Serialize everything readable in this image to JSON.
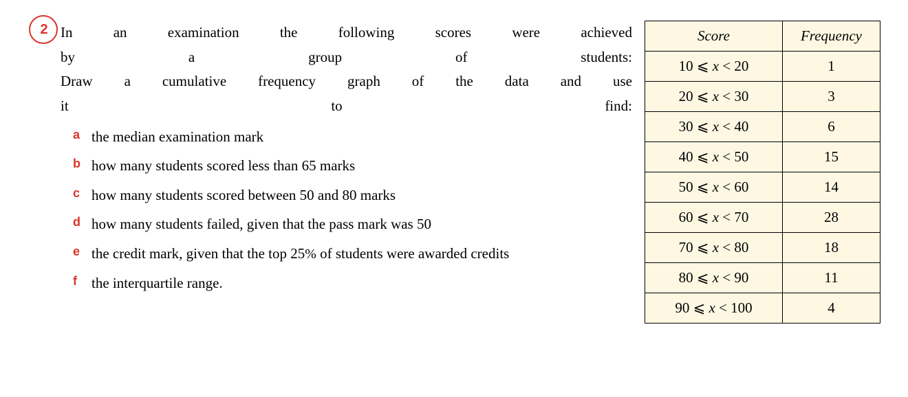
{
  "question": {
    "number": "2",
    "intro_line1": "In an examination the following scores were achieved",
    "intro_line2": "by a group of students:",
    "intro_line3": "Draw a cumulative frequency graph of the data and use",
    "intro_line4": "it to find:",
    "subparts": [
      {
        "label": "a",
        "text": "the median examination mark"
      },
      {
        "label": "b",
        "text": "how many students scored less than 65 marks"
      },
      {
        "label": "c",
        "text": "how many students scored between 50 and 80 marks"
      },
      {
        "label": "d",
        "text": "how many students failed, given that the pass mark was 50"
      },
      {
        "label": "e",
        "text": "the credit mark, given that the top 25% of students were awarded credits"
      },
      {
        "label": "f",
        "text": "the interquartile range."
      }
    ]
  },
  "table": {
    "headers": {
      "col1": "Score",
      "col2": "Frequency"
    },
    "rows": [
      {
        "score_low": "10",
        "score_high": "20",
        "freq": "1"
      },
      {
        "score_low": "20",
        "score_high": "30",
        "freq": "3"
      },
      {
        "score_low": "30",
        "score_high": "40",
        "freq": "6"
      },
      {
        "score_low": "40",
        "score_high": "50",
        "freq": "15"
      },
      {
        "score_low": "50",
        "score_high": "60",
        "freq": "14"
      },
      {
        "score_low": "60",
        "score_high": "70",
        "freq": "28"
      },
      {
        "score_low": "70",
        "score_high": "80",
        "freq": "18"
      },
      {
        "score_low": "80",
        "score_high": "90",
        "freq": "11"
      },
      {
        "score_low": "90",
        "score_high": "100",
        "freq": "4"
      }
    ],
    "background_color": "#fef8e3",
    "border_color": "#000000"
  },
  "colors": {
    "accent": "#d9342b",
    "circle": "#d9342b"
  }
}
